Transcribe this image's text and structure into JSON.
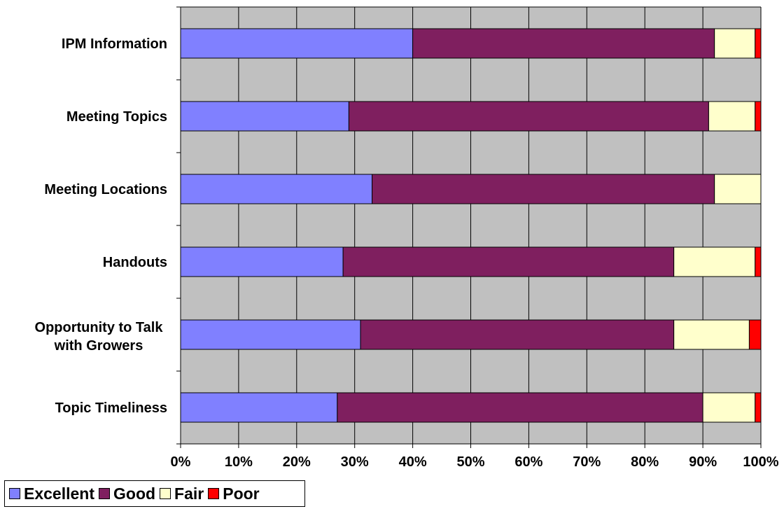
{
  "chart_data": {
    "type": "bar",
    "orientation": "horizontal",
    "stacked": "percent",
    "categories": [
      "IPM Information",
      "Meeting Topics",
      "Meeting Locations",
      "Handouts",
      "Opportunity to Talk with Growers",
      "Topic Timeliness"
    ],
    "category_lines": [
      [
        "IPM Information"
      ],
      [
        "Meeting Topics"
      ],
      [
        "Meeting Locations"
      ],
      [
        "Handouts"
      ],
      [
        "Opportunity to Talk",
        "with Growers"
      ],
      [
        "Topic Timeliness"
      ]
    ],
    "series": [
      {
        "name": "Excellent",
        "color": "#8080ff",
        "values": [
          40,
          29,
          33,
          28,
          31,
          27
        ]
      },
      {
        "name": "Good",
        "color": "#7f1f5f",
        "values": [
          52,
          62,
          59,
          57,
          54,
          63
        ]
      },
      {
        "name": "Fair",
        "color": "#ffffcc",
        "values": [
          7,
          8,
          8,
          14,
          13,
          9
        ]
      },
      {
        "name": "Poor",
        "color": "#ff0000",
        "values": [
          1,
          1,
          0,
          1,
          2,
          1
        ]
      }
    ],
    "x_ticks": [
      "0%",
      "10%",
      "20%",
      "30%",
      "40%",
      "50%",
      "60%",
      "70%",
      "80%",
      "90%",
      "100%"
    ],
    "xlim": [
      0,
      100
    ],
    "grid": true,
    "plot_background": "#c0c0c0",
    "legend_position": "bottom-left"
  }
}
